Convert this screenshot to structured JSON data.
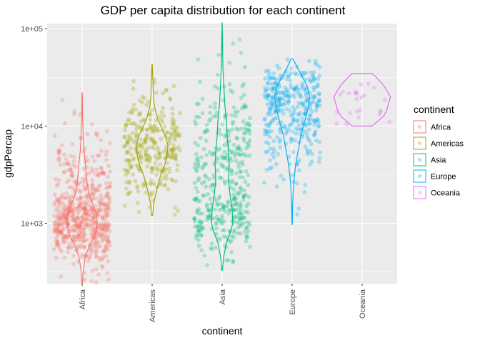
{
  "chart_data": {
    "type": "violin",
    "title": "GDP per capita distribution for each continent",
    "xlabel": "continent",
    "ylabel": "gdpPercap",
    "y_scale": "log10",
    "ylim": [
      240,
      113000
    ],
    "y_ticks": [
      1000,
      10000,
      100000
    ],
    "y_tick_labels": [
      "1e+03",
      "1e+04",
      "1e+05"
    ],
    "categories": [
      "Africa",
      "Americas",
      "Asia",
      "Europe",
      "Oceania"
    ],
    "legend": {
      "title": "continent",
      "position": "right"
    },
    "grid": true,
    "series": [
      {
        "name": "Africa",
        "color": "#F8766D",
        "n_points": 624,
        "min": 241,
        "max": 21951,
        "log_density": [
          [
            2.38,
            0.02
          ],
          [
            2.5,
            0.06
          ],
          [
            2.65,
            0.2
          ],
          [
            2.78,
            0.5
          ],
          [
            2.9,
            0.9
          ],
          [
            3.0,
            1.0
          ],
          [
            3.1,
            0.95
          ],
          [
            3.2,
            0.7
          ],
          [
            3.3,
            0.45
          ],
          [
            3.45,
            0.3
          ],
          [
            3.6,
            0.22
          ],
          [
            3.75,
            0.12
          ],
          [
            3.9,
            0.07
          ],
          [
            4.05,
            0.04
          ],
          [
            4.2,
            0.02
          ],
          [
            4.34,
            0.01
          ]
        ]
      },
      {
        "name": "Americas",
        "color": "#A3A500",
        "n_points": 300,
        "min": 1202,
        "max": 42952,
        "log_density": [
          [
            3.08,
            0.03
          ],
          [
            3.2,
            0.1
          ],
          [
            3.35,
            0.3
          ],
          [
            3.5,
            0.55
          ],
          [
            3.6,
            0.8
          ],
          [
            3.7,
            0.95
          ],
          [
            3.8,
            1.0
          ],
          [
            3.9,
            0.85
          ],
          [
            4.0,
            0.55
          ],
          [
            4.1,
            0.3
          ],
          [
            4.2,
            0.15
          ],
          [
            4.3,
            0.08
          ],
          [
            4.45,
            0.05
          ],
          [
            4.63,
            0.01
          ]
        ]
      },
      {
        "name": "Asia",
        "color": "#00BF7D",
        "n_points": 396,
        "min": 331,
        "max": 113523,
        "log_density": [
          [
            2.52,
            0.02
          ],
          [
            2.65,
            0.1
          ],
          [
            2.8,
            0.3
          ],
          [
            2.92,
            0.6
          ],
          [
            3.0,
            0.75
          ],
          [
            3.15,
            0.7
          ],
          [
            3.3,
            0.55
          ],
          [
            3.45,
            0.45
          ],
          [
            3.6,
            0.5
          ],
          [
            3.75,
            0.45
          ],
          [
            3.9,
            0.35
          ],
          [
            4.05,
            0.3
          ],
          [
            4.2,
            0.2
          ],
          [
            4.4,
            0.12
          ],
          [
            4.6,
            0.05
          ],
          [
            4.8,
            0.03
          ],
          [
            5.06,
            0.005
          ]
        ]
      },
      {
        "name": "Europe",
        "color": "#00B0F6",
        "n_points": 360,
        "min": 974,
        "max": 49357,
        "log_density": [
          [
            2.99,
            0.01
          ],
          [
            3.2,
            0.03
          ],
          [
            3.4,
            0.08
          ],
          [
            3.6,
            0.2
          ],
          [
            3.75,
            0.35
          ],
          [
            3.9,
            0.5
          ],
          [
            4.0,
            0.65
          ],
          [
            4.1,
            0.8
          ],
          [
            4.2,
            0.95
          ],
          [
            4.3,
            1.0
          ],
          [
            4.4,
            0.9
          ],
          [
            4.5,
            0.6
          ],
          [
            4.6,
            0.3
          ],
          [
            4.69,
            0.05
          ]
        ]
      },
      {
        "name": "Oceania",
        "color": "#E76BF3",
        "n_points": 24,
        "min": 10040,
        "max": 34435,
        "log_density": [
          [
            4.0,
            0.35
          ],
          [
            4.05,
            0.55
          ],
          [
            4.1,
            0.75
          ],
          [
            4.15,
            0.85
          ],
          [
            4.2,
            0.9
          ],
          [
            4.25,
            0.95
          ],
          [
            4.3,
            1.0
          ],
          [
            4.35,
            0.9
          ],
          [
            4.42,
            0.75
          ],
          [
            4.5,
            0.5
          ],
          [
            4.54,
            0.35
          ]
        ]
      }
    ]
  }
}
